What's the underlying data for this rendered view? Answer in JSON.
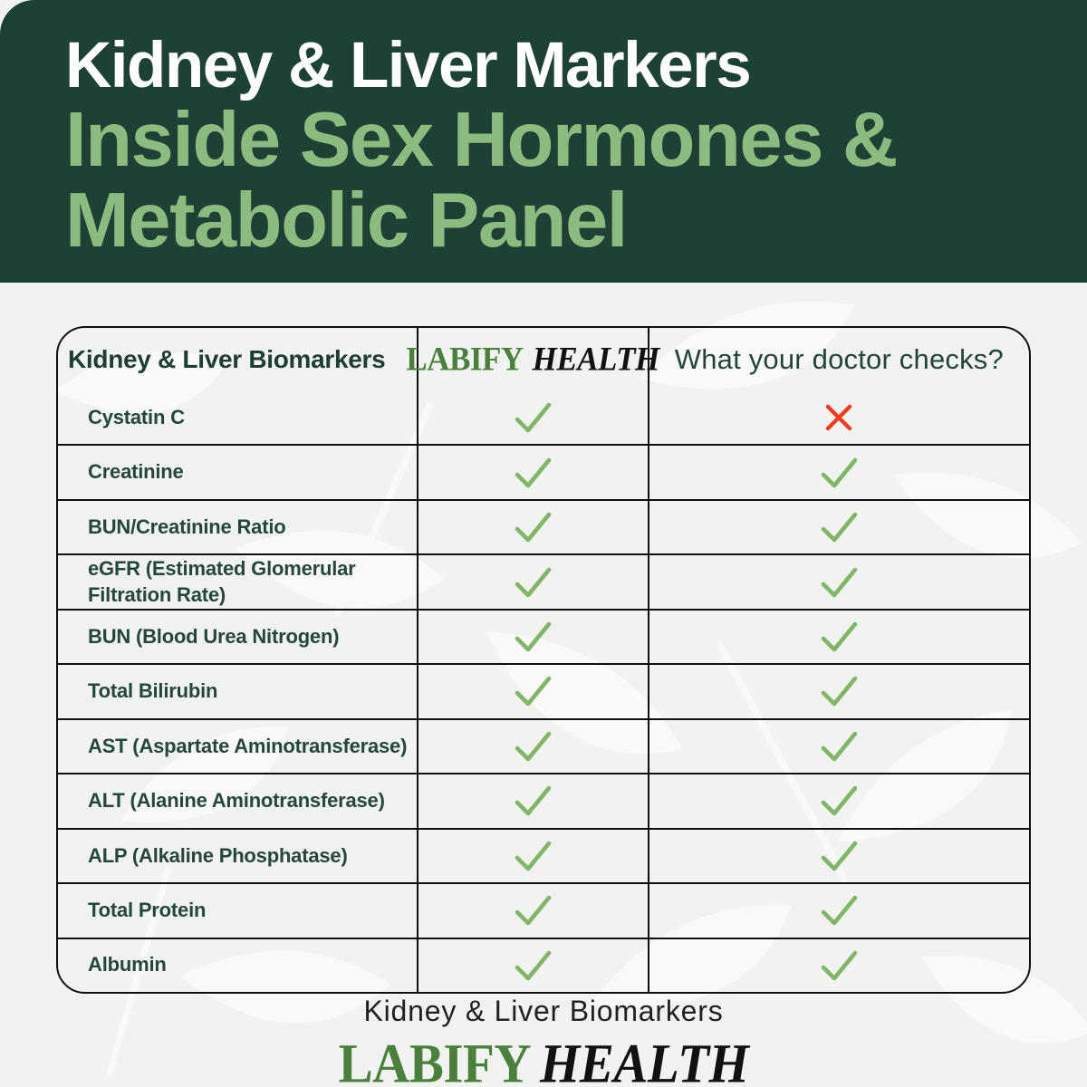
{
  "hero": {
    "title": "Kidney & Liver Markers",
    "subtitle_line1": "Inside Sex Hormones &",
    "subtitle_line2": "Metabolic Panel"
  },
  "brand": {
    "word1": "LABIFY",
    "word2": "HEALTH"
  },
  "table": {
    "header": {
      "biomarkers_label": "Kidney & Liver Biomarkers",
      "doctor_label": "What your doctor checks?"
    },
    "rows": [
      {
        "label": "Cystatin C",
        "labify": "check",
        "doctor": "cross"
      },
      {
        "label": "Creatinine",
        "labify": "check",
        "doctor": "check"
      },
      {
        "label": "BUN/Creatinine Ratio",
        "labify": "check",
        "doctor": "check"
      },
      {
        "label": "eGFR (Estimated Glomerular Filtration Rate)",
        "labify": "check",
        "doctor": "check"
      },
      {
        "label": "BUN (Blood Urea Nitrogen)",
        "labify": "check",
        "doctor": "check"
      },
      {
        "label": "Total Bilirubin",
        "labify": "check",
        "doctor": "check"
      },
      {
        "label": "AST (Aspartate Aminotransferase)",
        "labify": "check",
        "doctor": "check"
      },
      {
        "label": "ALT (Alanine Aminotransferase)",
        "labify": "check",
        "doctor": "check"
      },
      {
        "label": "ALP (Alkaline Phosphatase)",
        "labify": "check",
        "doctor": "check"
      },
      {
        "label": "Total Protein",
        "labify": "check",
        "doctor": "check"
      },
      {
        "label": "Albumin",
        "labify": "check",
        "doctor": "check"
      }
    ]
  },
  "footer": {
    "caption": "Kidney & Liver Biomarkers"
  },
  "colors": {
    "header_bg": "#1d4134",
    "title": "#ffffff",
    "subtitle": "#8cbb80",
    "label_text": "#27463b",
    "check": "#82b567",
    "cross": "#f5391e",
    "logo_green": "#4b7f3d",
    "logo_black": "#111111",
    "page_bg": "#f1f3f0",
    "border": "#101010"
  }
}
